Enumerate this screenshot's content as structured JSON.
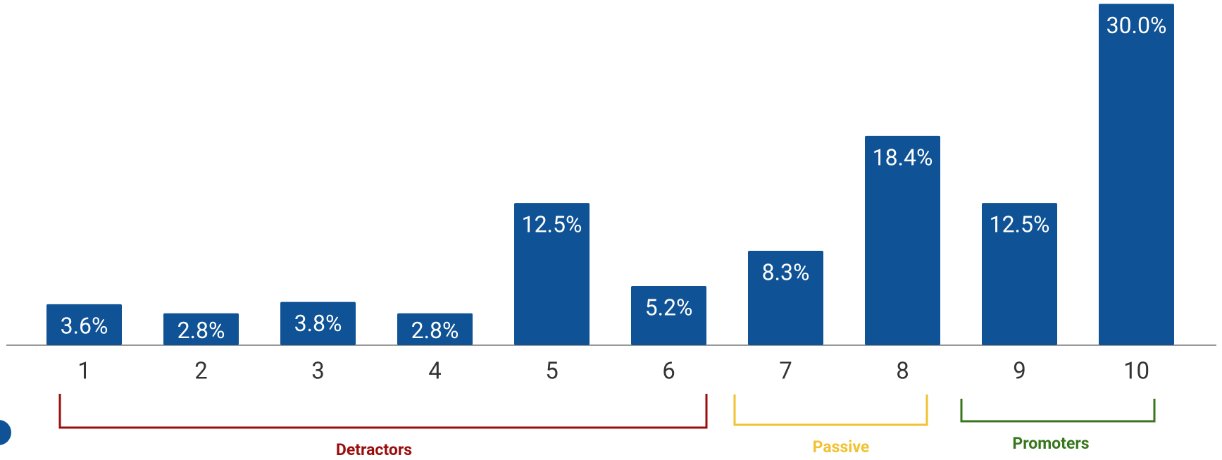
{
  "chart_data": {
    "type": "bar",
    "categories": [
      "1",
      "2",
      "3",
      "4",
      "5",
      "6",
      "7",
      "8",
      "9",
      "10"
    ],
    "values": [
      3.6,
      2.8,
      3.8,
      2.8,
      12.5,
      5.2,
      8.3,
      18.4,
      12.5,
      30.0
    ],
    "value_labels": [
      "3.6%",
      "2.8%",
      "3.8%",
      "2.8%",
      "12.5%",
      "5.2%",
      "8.3%",
      "18.4%",
      "12.5%",
      "30.0%"
    ],
    "color": "#0f5295",
    "ylim": [
      0,
      30
    ],
    "groups": [
      {
        "label": "Detractors",
        "color": "#9b0d0d"
      },
      {
        "label": "Passive",
        "color": "#f1c232"
      },
      {
        "label": "Promoters",
        "color": "#38761d"
      }
    ]
  }
}
